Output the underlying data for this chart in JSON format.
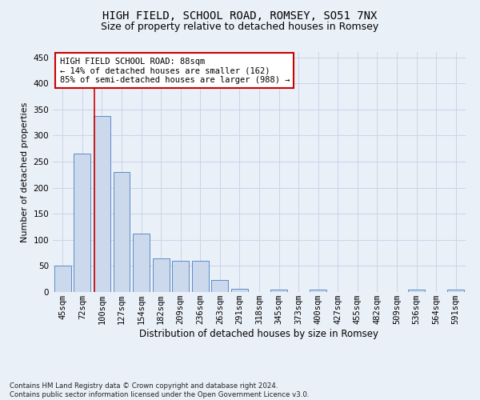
{
  "title": "HIGH FIELD, SCHOOL ROAD, ROMSEY, SO51 7NX",
  "subtitle": "Size of property relative to detached houses in Romsey",
  "xlabel": "Distribution of detached houses by size in Romsey",
  "ylabel": "Number of detached properties",
  "categories": [
    "45sqm",
    "72sqm",
    "100sqm",
    "127sqm",
    "154sqm",
    "182sqm",
    "209sqm",
    "236sqm",
    "263sqm",
    "291sqm",
    "318sqm",
    "345sqm",
    "373sqm",
    "400sqm",
    "427sqm",
    "455sqm",
    "482sqm",
    "509sqm",
    "536sqm",
    "564sqm",
    "591sqm"
  ],
  "values": [
    50,
    265,
    338,
    230,
    112,
    65,
    60,
    60,
    23,
    6,
    0,
    4,
    0,
    4,
    0,
    0,
    0,
    0,
    4,
    0,
    4
  ],
  "bar_color": "#ccd9ec",
  "bar_edge_color": "#5b8cc8",
  "grid_color": "#c8d4e8",
  "background_color": "#eaf0f8",
  "vline_x": 1.62,
  "vline_color": "#cc0000",
  "annotation_text": "HIGH FIELD SCHOOL ROAD: 88sqm\n← 14% of detached houses are smaller (162)\n85% of semi-detached houses are larger (988) →",
  "annotation_box_color": "#ffffff",
  "annotation_border_color": "#cc0000",
  "ylim": [
    0,
    460
  ],
  "yticks": [
    0,
    50,
    100,
    150,
    200,
    250,
    300,
    350,
    400,
    450
  ],
  "footer": "Contains HM Land Registry data © Crown copyright and database right 2024.\nContains public sector information licensed under the Open Government Licence v3.0.",
  "title_fontsize": 10,
  "subtitle_fontsize": 9,
  "xlabel_fontsize": 8.5,
  "ylabel_fontsize": 8,
  "tick_fontsize": 7.5,
  "annotation_fontsize": 7.5
}
